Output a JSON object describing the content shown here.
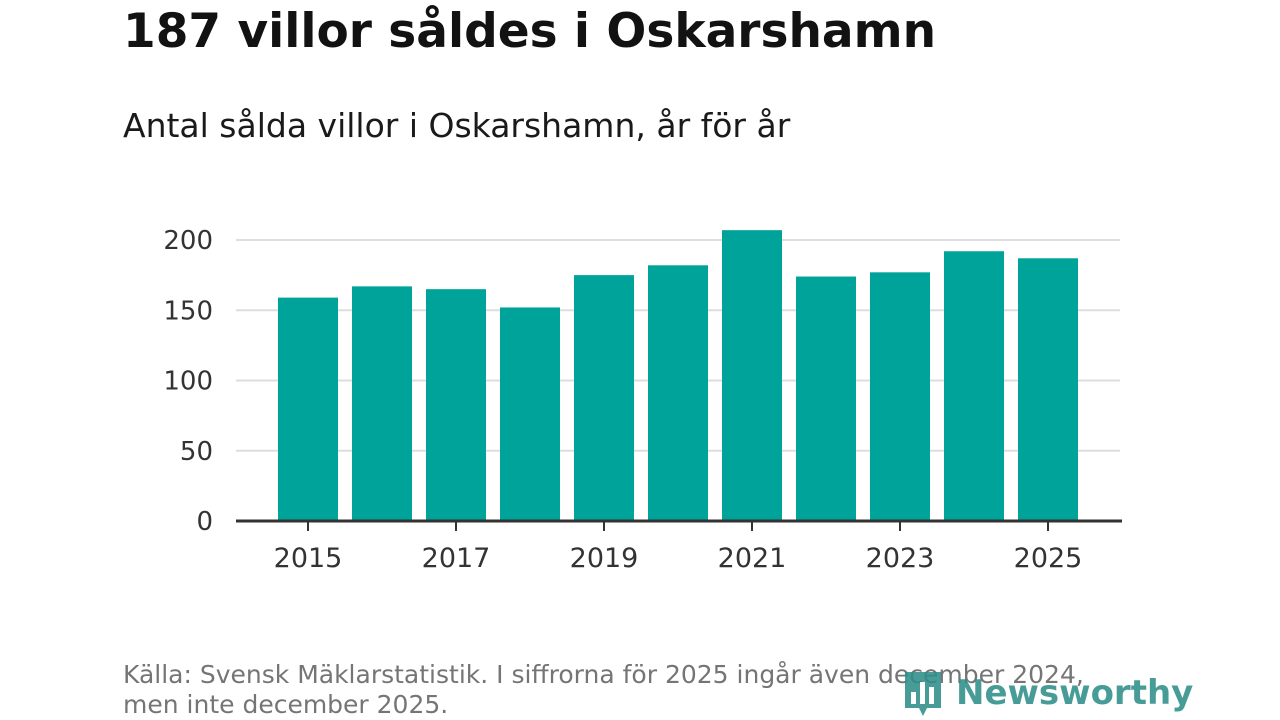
{
  "header": {
    "title": "187 villor såldes i Oskarshamn",
    "subtitle": "Antal sålda villor i Oskarshamn, år för år"
  },
  "footer": {
    "source": "Källa: Svensk Mäklarstatistik. I siffrorna för 2025 ingår även december 2024, men inte december 2025."
  },
  "logo": {
    "text": "Newsworthy",
    "icon": "bar-chart-icon"
  },
  "colors": {
    "bar": "#00a39a",
    "grid": "#dddddd",
    "axis": "#333333",
    "brand": "#2f8f8a"
  },
  "chart_data": {
    "type": "bar",
    "title": "187 villor såldes i Oskarshamn",
    "subtitle": "Antal sålda villor i Oskarshamn, år för år",
    "categories": [
      2015,
      2016,
      2017,
      2018,
      2019,
      2020,
      2021,
      2022,
      2023,
      2024,
      2025
    ],
    "values": [
      159,
      167,
      165,
      152,
      175,
      182,
      207,
      174,
      177,
      192,
      187
    ],
    "x_tick_labels": [
      "2015",
      "2017",
      "2019",
      "2021",
      "2023",
      "2025"
    ],
    "y_ticks": [
      0,
      50,
      100,
      150,
      200
    ],
    "ylim": [
      0,
      200
    ],
    "xlabel": "",
    "ylabel": "",
    "grid": true
  }
}
